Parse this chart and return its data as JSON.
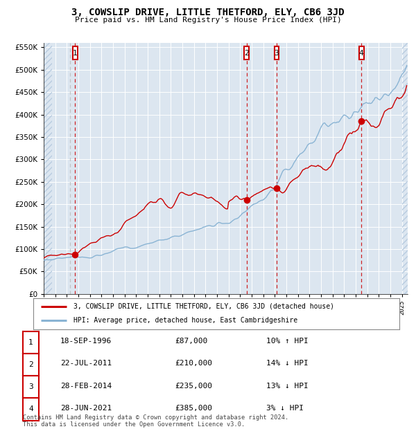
{
  "title": "3, COWSLIP DRIVE, LITTLE THETFORD, ELY, CB6 3JD",
  "subtitle": "Price paid vs. HM Land Registry's House Price Index (HPI)",
  "background_color": "#dce6f0",
  "grid_color": "#ffffff",
  "hpi_color": "#8ab4d4",
  "price_color": "#cc0000",
  "vline_color": "#cc0000",
  "grey_vline_color": "#bbbbbb",
  "ylim": [
    0,
    560000
  ],
  "ytick_step": 50000,
  "transactions": [
    {
      "num": 1,
      "date_idx": 1996.72,
      "price": 87000
    },
    {
      "num": 2,
      "date_idx": 2011.55,
      "price": 210000
    },
    {
      "num": 3,
      "date_idx": 2014.16,
      "price": 235000
    },
    {
      "num": 4,
      "date_idx": 2021.49,
      "price": 385000
    }
  ],
  "legend_line1": "3, COWSLIP DRIVE, LITTLE THETFORD, ELY, CB6 3JD (detached house)",
  "legend_line2": "HPI: Average price, detached house, East Cambridgeshire",
  "table_rows": [
    {
      "num": 1,
      "date": "18-SEP-1996",
      "price": "£87,000",
      "pct": "10% ↑ HPI"
    },
    {
      "num": 2,
      "date": "22-JUL-2011",
      "price": "£210,000",
      "pct": "14% ↓ HPI"
    },
    {
      "num": 3,
      "date": "28-FEB-2014",
      "price": "£235,000",
      "pct": "13% ↓ HPI"
    },
    {
      "num": 4,
      "date": "28-JUN-2021",
      "price": "£385,000",
      "pct": "3% ↓ HPI"
    }
  ],
  "footer": "Contains HM Land Registry data © Crown copyright and database right 2024.\nThis data is licensed under the Open Government Licence v3.0.",
  "xmin": 1994.0,
  "xmax": 2025.5
}
